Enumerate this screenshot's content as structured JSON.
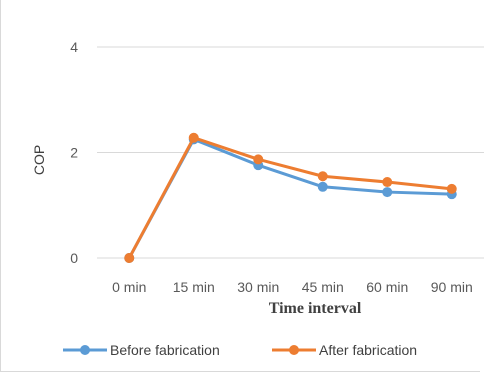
{
  "chart_data": {
    "type": "line",
    "title": "",
    "xlabel": "Time interval",
    "ylabel": "COP",
    "categories": [
      "0 min",
      "15 min",
      "30 min",
      "45 min",
      "60 min",
      "90 min"
    ],
    "ylim": [
      0,
      4
    ],
    "yticks": [
      "0",
      "2",
      "4"
    ],
    "grid": true,
    "legend_position": "bottom",
    "series": [
      {
        "name": "Before fabrication",
        "color": "#5b9bd5",
        "values": [
          0,
          2.25,
          1.76,
          1.35,
          1.25,
          1.21
        ]
      },
      {
        "name": "After fabrication",
        "color": "#ed7d31",
        "values": [
          0,
          2.28,
          1.87,
          1.55,
          1.44,
          1.31
        ]
      }
    ]
  }
}
